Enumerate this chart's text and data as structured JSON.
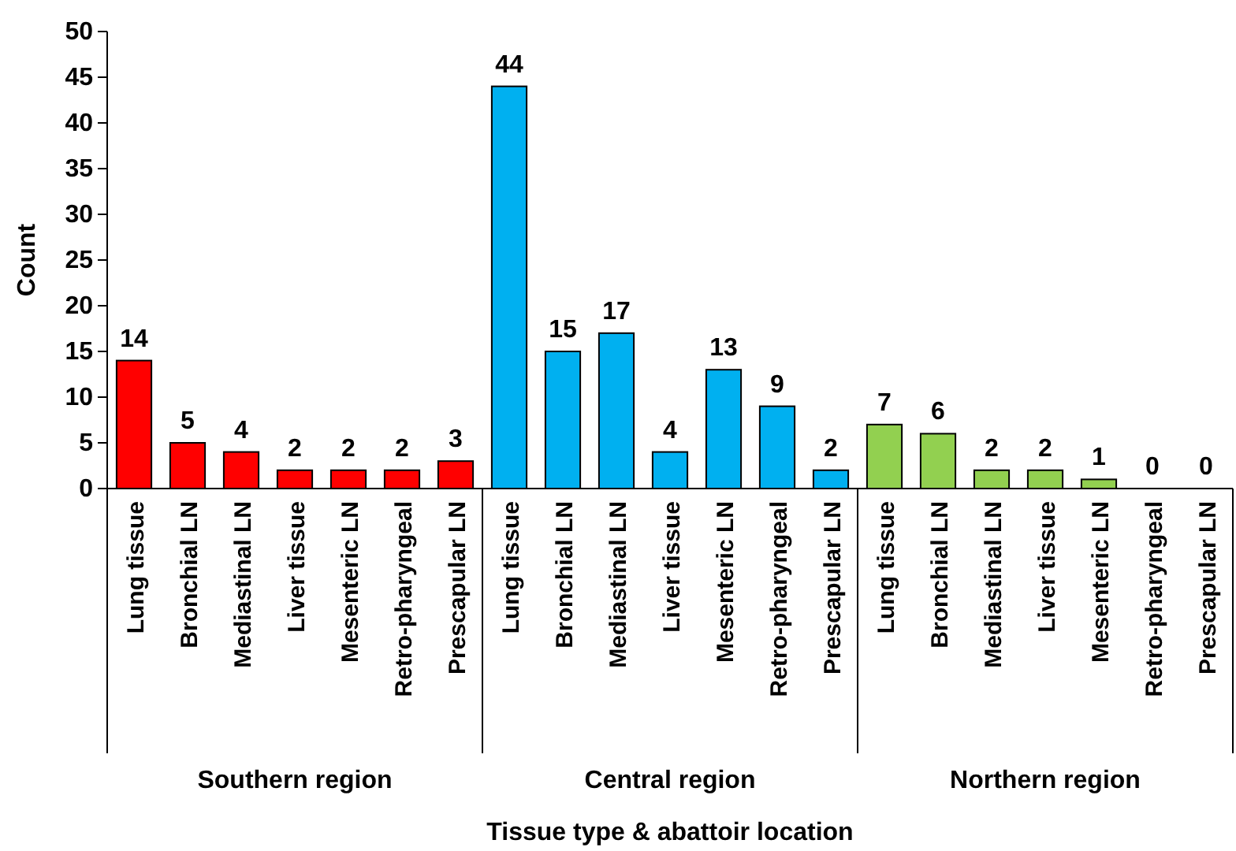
{
  "chart_data": {
    "type": "bar",
    "xlabel": "Tissue type & abattoir location",
    "ylabel": "Count",
    "categories": [
      "Lung tissue",
      "Bronchial LN",
      "Mediastinal LN",
      "Liver tissue",
      "Mesenteric LN",
      "Retro-pharyngeal",
      "Prescapular LN",
      "Lung tissue",
      "Bronchial LN",
      "Mediastinal LN",
      "Liver tissue",
      "Mesenteric LN",
      "Retro-pharyngeal",
      "Prescapular LN",
      "Lung tissue",
      "Bronchial LN",
      "Mediastinal LN",
      "Liver tissue",
      "Mesenteric LN",
      "Retro-pharyngeal",
      "Prescapular LN"
    ],
    "values": [
      14,
      5,
      4,
      2,
      2,
      2,
      3,
      44,
      15,
      17,
      4,
      13,
      9,
      2,
      7,
      6,
      2,
      2,
      1,
      0,
      0
    ],
    "colors": [
      "#ff0000",
      "#ff0000",
      "#ff0000",
      "#ff0000",
      "#ff0000",
      "#ff0000",
      "#ff0000",
      "#00b0f0",
      "#00b0f0",
      "#00b0f0",
      "#00b0f0",
      "#00b0f0",
      "#00b0f0",
      "#00b0f0",
      "#92d050",
      "#92d050",
      "#92d050",
      "#92d050",
      "#92d050",
      "#92d050",
      "#92d050"
    ],
    "annotations": [
      "Southern region",
      "Central region",
      "Northern region"
    ],
    "ylim": [
      0,
      50
    ],
    "yticks": [
      0,
      5,
      10,
      15,
      20,
      25,
      30,
      35,
      40,
      45,
      50
    ],
    "grid": false,
    "data_labels": true
  }
}
